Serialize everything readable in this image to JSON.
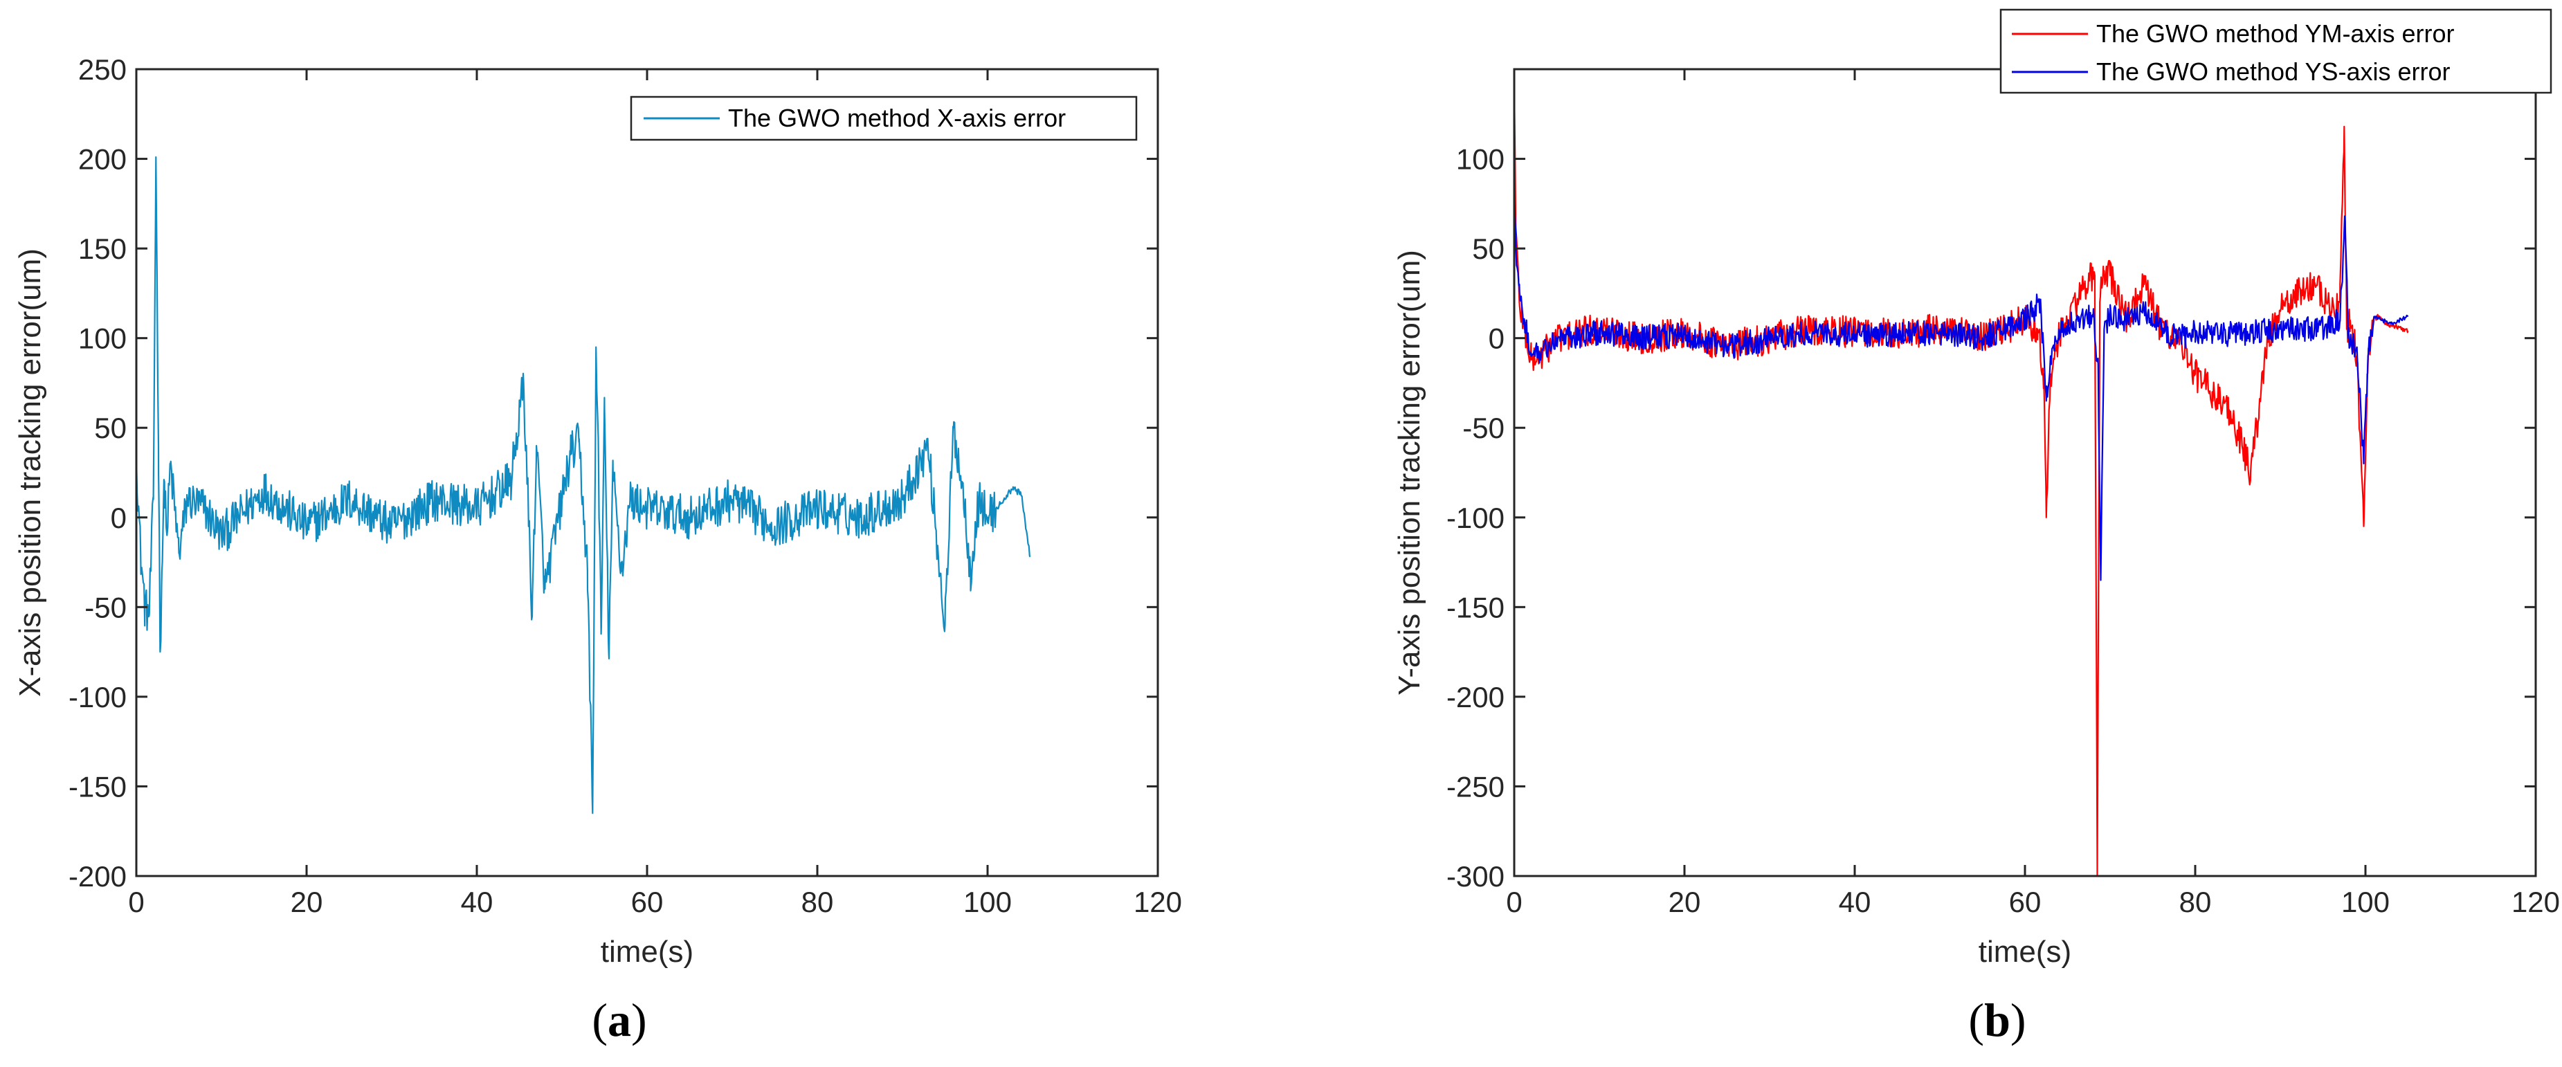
{
  "figure": {
    "caption_a_open": "(",
    "caption_a_letter": "a",
    "caption_a_close": ")",
    "caption_b_open": "(",
    "caption_b_letter": "b",
    "caption_b_close": ")"
  },
  "chart_data": [
    {
      "id": "a",
      "type": "line",
      "title": "",
      "xlabel": "time(s)",
      "ylabel": "X-axis position tracking error(um)",
      "xlim": [
        0,
        120
      ],
      "ylim": [
        -200,
        250
      ],
      "xticks": [
        0,
        20,
        40,
        60,
        80,
        100,
        120
      ],
      "yticks": [
        -200,
        -150,
        -100,
        -50,
        0,
        50,
        100,
        150,
        200,
        250
      ],
      "grid": false,
      "legend_position": "top-right",
      "colors": {
        "X": "#0f8bc2"
      },
      "series": [
        {
          "name": "The GWO method X-axis error",
          "color": "#0f8bc2",
          "noise_amplitude": 12,
          "x": [
            0,
            0.5,
            1,
            1.5,
            2,
            2.3,
            2.6,
            2.8,
            3.0,
            3.3,
            3.6,
            4,
            5,
            6,
            8,
            10,
            15,
            20,
            25,
            30,
            35,
            40,
            44,
            45.5,
            46.5,
            47,
            48,
            50,
            51,
            52,
            53,
            53.6,
            54.0,
            54.3,
            54.6,
            55,
            55.5,
            56,
            57,
            58,
            60,
            65,
            70,
            75,
            80,
            85,
            90,
            93,
            95,
            96,
            97,
            98,
            99,
            100,
            101,
            102,
            103,
            104,
            105
          ],
          "y": [
            35,
            -20,
            -50,
            -55,
            10,
            201,
            40,
            -75,
            -30,
            20,
            -10,
            30,
            -20,
            10,
            5,
            -10,
            15,
            -5,
            10,
            -5,
            10,
            5,
            20,
            75,
            -55,
            40,
            -40,
            10,
            35,
            42,
            -30,
            -165,
            95,
            30,
            -65,
            60,
            -75,
            25,
            -30,
            10,
            5,
            0,
            10,
            -5,
            5,
            0,
            10,
            40,
            -60,
            50,
            20,
            -30,
            10,
            0,
            5,
            10,
            17,
            12,
            -22
          ]
        }
      ]
    },
    {
      "id": "b",
      "type": "line",
      "title": "",
      "xlabel": "time(s)",
      "ylabel": "Y-axis position tracking error(um)",
      "xlim": [
        0,
        120
      ],
      "ylim": [
        -300,
        150
      ],
      "xticks": [
        0,
        20,
        40,
        60,
        80,
        100,
        120
      ],
      "yticks": [
        -300,
        -250,
        -200,
        -150,
        -100,
        -50,
        0,
        50,
        100
      ],
      "grid": false,
      "legend_position": "top-right",
      "colors": {
        "YM": "#ff0000",
        "YS": "#0000e6"
      },
      "series": [
        {
          "name": "The GWO method YM-axis error",
          "color": "#ff0000",
          "noise_amplitude": 9,
          "x": [
            0,
            0.2,
            0.6,
            1.2,
            2,
            3,
            5,
            10,
            15,
            20,
            25,
            30,
            35,
            40,
            45,
            50,
            55,
            60,
            61.5,
            62.2,
            62.5,
            63,
            64,
            65,
            67,
            68.2,
            68.5,
            68.8,
            69.2,
            70,
            72,
            74,
            76,
            78,
            80,
            82,
            84,
            85.5,
            86.5,
            87.5,
            88.5,
            90,
            92,
            94,
            96,
            97,
            97.5,
            97.8,
            98.2,
            99,
            99.8,
            100.2,
            100.8,
            101.5,
            102.5,
            104,
            105
          ],
          "y": [
            140,
            60,
            20,
            5,
            -12,
            -10,
            0,
            5,
            0,
            3,
            -5,
            0,
            5,
            3,
            2,
            5,
            0,
            10,
            5,
            -20,
            -100,
            -20,
            0,
            10,
            30,
            35,
            -300,
            20,
            40,
            35,
            10,
            30,
            5,
            0,
            -20,
            -30,
            -40,
            -60,
            -75,
            -40,
            0,
            15,
            25,
            30,
            15,
            20,
            118,
            5,
            10,
            -10,
            -105,
            -20,
            10,
            12,
            8,
            6,
            4
          ]
        },
        {
          "name": "The GWO method YS-axis error",
          "color": "#0000e6",
          "noise_amplitude": 7,
          "x": [
            0,
            0.2,
            0.6,
            1.2,
            2,
            3,
            5,
            10,
            15,
            20,
            25,
            30,
            35,
            40,
            45,
            50,
            55,
            60,
            61.8,
            62.5,
            63,
            64,
            66,
            68,
            68.6,
            68.9,
            69.3,
            70,
            72,
            74,
            76,
            78,
            80,
            85,
            90,
            95,
            97,
            97.6,
            98,
            99,
            99.8,
            100.3,
            101,
            102,
            103,
            104,
            105
          ],
          "y": [
            80,
            50,
            30,
            10,
            -10,
            -8,
            0,
            3,
            0,
            2,
            -5,
            0,
            3,
            2,
            2,
            3,
            0,
            10,
            20,
            -35,
            -10,
            5,
            10,
            12,
            -15,
            -135,
            5,
            12,
            10,
            15,
            5,
            0,
            3,
            2,
            5,
            5,
            10,
            65,
            0,
            -5,
            -70,
            -10,
            12,
            10,
            8,
            10,
            12
          ]
        }
      ]
    }
  ]
}
